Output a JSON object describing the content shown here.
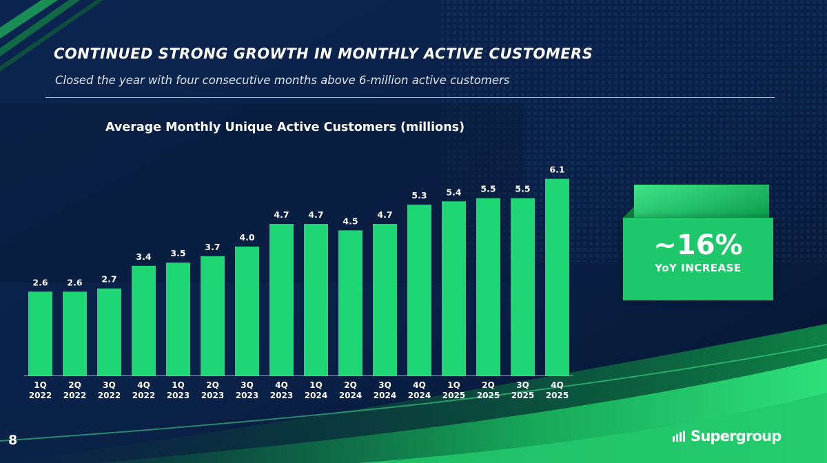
{
  "slide": {
    "title": "CONTINUED STRONG GROWTH IN MONTHLY ACTIVE CUSTOMERS",
    "subtitle": "Closed the year with four consecutive months above 6-million active customers",
    "page_number": "8"
  },
  "callout": {
    "value": "~16%",
    "label": "YoY INCREASE"
  },
  "logo": {
    "text_a": "Super",
    "text_b": "group"
  },
  "colors": {
    "bar": "#1ed674",
    "accent": "#1ec86a",
    "background": "#061a3a"
  },
  "chart_data": {
    "type": "bar",
    "title": "Average Monthly Unique Active Customers (millions)",
    "categories": [
      "1Q 2022",
      "2Q 2022",
      "3Q 2022",
      "4Q 2022",
      "1Q 2023",
      "2Q 2023",
      "3Q 2023",
      "4Q 2023",
      "1Q 2024",
      "2Q 2024",
      "3Q 2024",
      "4Q 2024",
      "1Q 2025",
      "2Q 2025",
      "3Q 2025",
      "4Q 2025"
    ],
    "category_lines": [
      [
        "1Q",
        "2022"
      ],
      [
        "2Q",
        "2022"
      ],
      [
        "3Q",
        "2022"
      ],
      [
        "4Q",
        "2022"
      ],
      [
        "1Q",
        "2023"
      ],
      [
        "2Q",
        "2023"
      ],
      [
        "3Q",
        "2023"
      ],
      [
        "4Q",
        "2023"
      ],
      [
        "1Q",
        "2024"
      ],
      [
        "2Q",
        "2024"
      ],
      [
        "3Q",
        "2024"
      ],
      [
        "4Q",
        "2024"
      ],
      [
        "1Q",
        "2025"
      ],
      [
        "2Q",
        "2025"
      ],
      [
        "3Q",
        "2025"
      ],
      [
        "4Q",
        "2025"
      ]
    ],
    "values": [
      2.6,
      2.6,
      2.7,
      3.4,
      3.5,
      3.7,
      4.0,
      4.7,
      4.7,
      4.5,
      4.7,
      5.3,
      5.4,
      5.5,
      5.5,
      6.1
    ],
    "value_labels": [
      "2.6",
      "2.6",
      "2.7",
      "3.4",
      "3.5",
      "3.7",
      "4.0",
      "4.7",
      "4.7",
      "4.5",
      "4.7",
      "5.3",
      "5.4",
      "5.5",
      "5.5",
      "6.1"
    ],
    "xlabel": "",
    "ylabel": "",
    "ylim": [
      0,
      6.5
    ],
    "grid": false,
    "legend": "none"
  }
}
